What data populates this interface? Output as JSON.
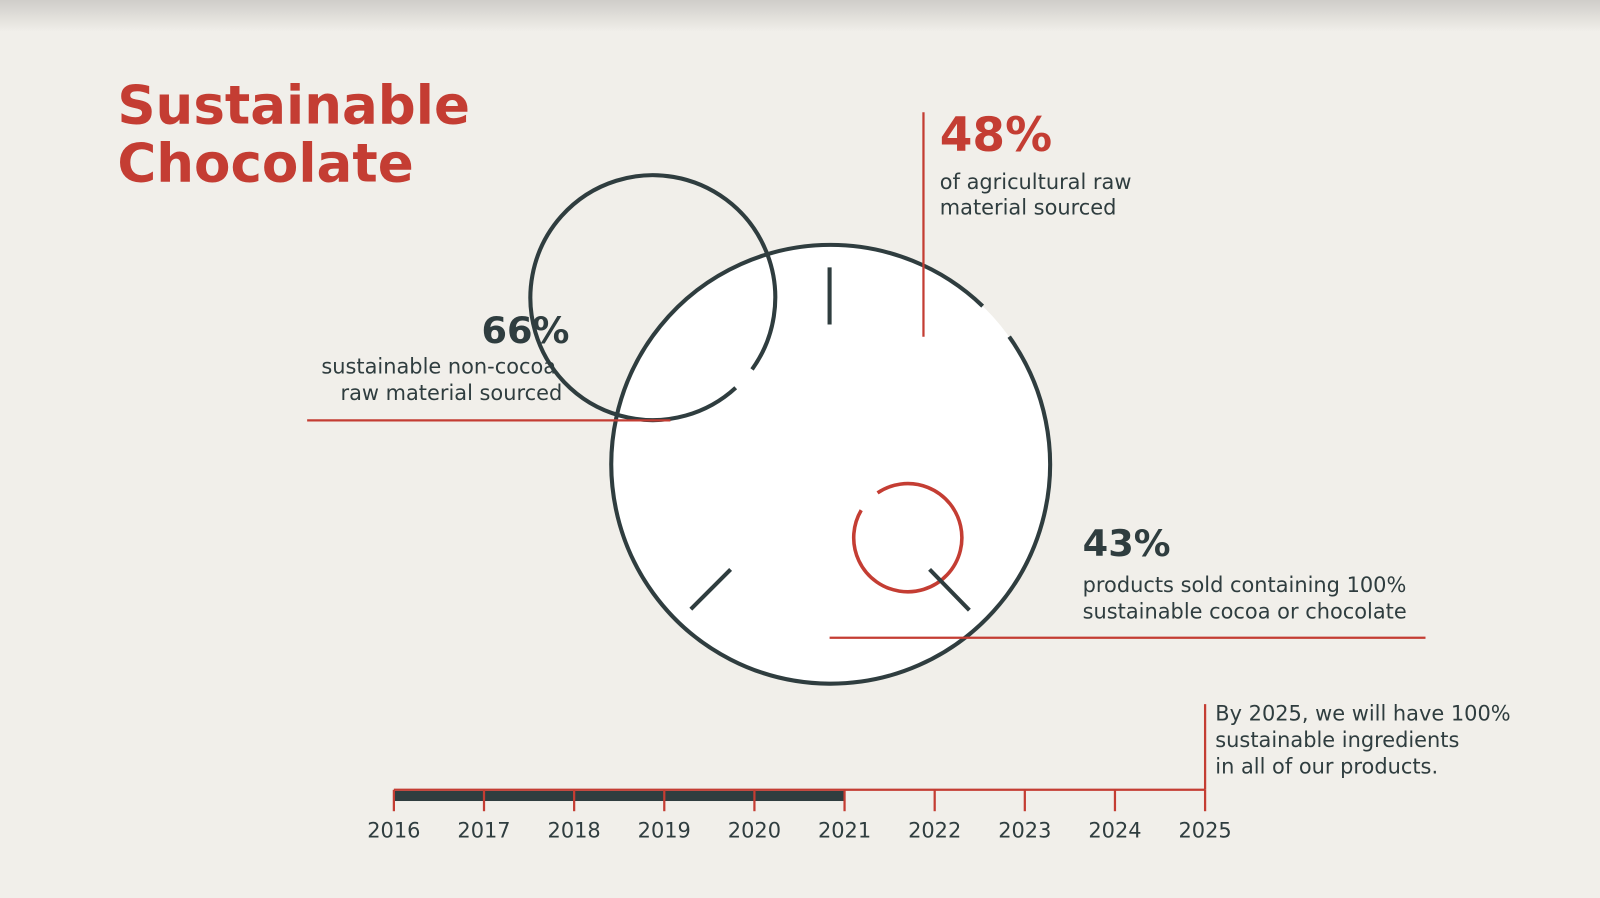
{
  "title": [
    "Sustainable",
    "Chocolate"
  ],
  "stats": [
    {
      "value": "48%",
      "lines": [
        "of agricultural raw",
        "material sourced"
      ]
    },
    {
      "value": "66%",
      "lines": [
        "sustainable non-cocoa",
        "raw material sourced"
      ]
    },
    {
      "value": "43%",
      "lines": [
        "products sold containing 100%",
        "sustainable cocoa or chocolate"
      ]
    }
  ],
  "note": [
    "By 2025, we will have 100%",
    "sustainable ingredients",
    "in all of our products."
  ],
  "timeline": {
    "years": [
      "2016",
      "2017",
      "2018",
      "2019",
      "2020",
      "2021",
      "2022",
      "2023",
      "2024",
      "2025"
    ]
  }
}
